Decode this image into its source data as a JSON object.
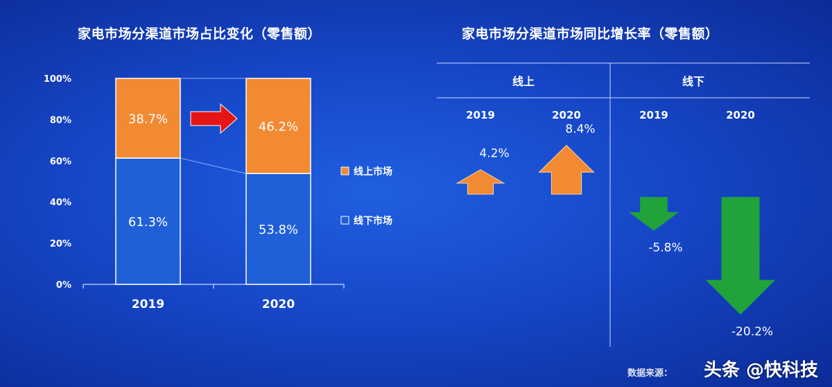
{
  "left_title": "家电市场分渠道市场占比变化（零售额）",
  "right_title": "家电市场分渠道市场同比增长率（零售额）",
  "colors": {
    "online": "#f28a33",
    "offline": "#1f5fd8",
    "up": "#f28a33",
    "down": "#1fa33a",
    "shift_arrow": "#e51515"
  },
  "chart_data": [
    {
      "type": "bar",
      "stacked": true,
      "categories": [
        "2019",
        "2020"
      ],
      "series": [
        {
          "name": "线下市场",
          "values": [
            61.3,
            53.8
          ],
          "labels": [
            "61.3%",
            "53.8%"
          ]
        },
        {
          "name": "线上市场",
          "values": [
            38.7,
            46.2
          ],
          "labels": [
            "38.7%",
            "46.2%"
          ]
        }
      ],
      "yticks": [
        "0%",
        "20%",
        "40%",
        "60%",
        "80%",
        "100%"
      ],
      "ylim": [
        0,
        100
      ],
      "legend": [
        "线上市场",
        "线下市场"
      ],
      "legend_position": "right"
    },
    {
      "type": "bar",
      "groups": [
        "线上",
        "线下"
      ],
      "categories": [
        "2019",
        "2020",
        "2019",
        "2020"
      ],
      "values": [
        4.2,
        8.4,
        -5.8,
        -20.2
      ],
      "labels": [
        "4.2%",
        "8.4%",
        "-5.8%",
        "-20.2%"
      ]
    }
  ],
  "source_label": "数据来源：",
  "watermark": "头条 @快科技"
}
